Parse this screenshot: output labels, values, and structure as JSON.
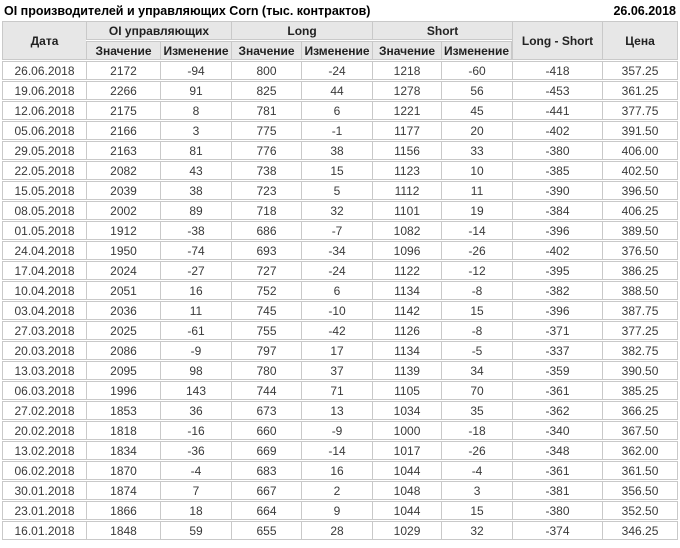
{
  "title_bar": {
    "title": "OI производителей и управляющих Corn (тыс. контрактов)",
    "report_date": "26.06.2018"
  },
  "table": {
    "header": {
      "date": "Дата",
      "oi_group": "OI управляющих",
      "long_group": "Long",
      "short_group": "Short",
      "long_short": "Long - Short",
      "price": "Цена",
      "value_label": "Значение",
      "change_label": "Изменение"
    },
    "rows": [
      {
        "date": "26.06.2018",
        "oi_value": 2172,
        "oi_change": -94,
        "long_value": 800,
        "long_change": -24,
        "short_value": 1218,
        "short_change": -60,
        "long_short": -418,
        "price": "357.25"
      },
      {
        "date": "19.06.2018",
        "oi_value": 2266,
        "oi_change": 91,
        "long_value": 825,
        "long_change": 44,
        "short_value": 1278,
        "short_change": 56,
        "long_short": -453,
        "price": "361.25"
      },
      {
        "date": "12.06.2018",
        "oi_value": 2175,
        "oi_change": 8,
        "long_value": 781,
        "long_change": 6,
        "short_value": 1221,
        "short_change": 45,
        "long_short": -441,
        "price": "377.75"
      },
      {
        "date": "05.06.2018",
        "oi_value": 2166,
        "oi_change": 3,
        "long_value": 775,
        "long_change": -1,
        "short_value": 1177,
        "short_change": 20,
        "long_short": -402,
        "price": "391.50"
      },
      {
        "date": "29.05.2018",
        "oi_value": 2163,
        "oi_change": 81,
        "long_value": 776,
        "long_change": 38,
        "short_value": 1156,
        "short_change": 33,
        "long_short": -380,
        "price": "406.00"
      },
      {
        "date": "22.05.2018",
        "oi_value": 2082,
        "oi_change": 43,
        "long_value": 738,
        "long_change": 15,
        "short_value": 1123,
        "short_change": 10,
        "long_short": -385,
        "price": "402.50"
      },
      {
        "date": "15.05.2018",
        "oi_value": 2039,
        "oi_change": 38,
        "long_value": 723,
        "long_change": 5,
        "short_value": 1112,
        "short_change": 11,
        "long_short": -390,
        "price": "396.50"
      },
      {
        "date": "08.05.2018",
        "oi_value": 2002,
        "oi_change": 89,
        "long_value": 718,
        "long_change": 32,
        "short_value": 1101,
        "short_change": 19,
        "long_short": -384,
        "price": "406.25"
      },
      {
        "date": "01.05.2018",
        "oi_value": 1912,
        "oi_change": -38,
        "long_value": 686,
        "long_change": -7,
        "short_value": 1082,
        "short_change": -14,
        "long_short": -396,
        "price": "389.50"
      },
      {
        "date": "24.04.2018",
        "oi_value": 1950,
        "oi_change": -74,
        "long_value": 693,
        "long_change": -34,
        "short_value": 1096,
        "short_change": -26,
        "long_short": -402,
        "price": "376.50"
      },
      {
        "date": "17.04.2018",
        "oi_value": 2024,
        "oi_change": -27,
        "long_value": 727,
        "long_change": -24,
        "short_value": 1122,
        "short_change": -12,
        "long_short": -395,
        "price": "386.25"
      },
      {
        "date": "10.04.2018",
        "oi_value": 2051,
        "oi_change": 16,
        "long_value": 752,
        "long_change": 6,
        "short_value": 1134,
        "short_change": -8,
        "long_short": -382,
        "price": "388.50"
      },
      {
        "date": "03.04.2018",
        "oi_value": 2036,
        "oi_change": 11,
        "long_value": 745,
        "long_change": -10,
        "short_value": 1142,
        "short_change": 15,
        "long_short": -396,
        "price": "387.75"
      },
      {
        "date": "27.03.2018",
        "oi_value": 2025,
        "oi_change": -61,
        "long_value": 755,
        "long_change": -42,
        "short_value": 1126,
        "short_change": -8,
        "long_short": -371,
        "price": "377.25"
      },
      {
        "date": "20.03.2018",
        "oi_value": 2086,
        "oi_change": -9,
        "long_value": 797,
        "long_change": 17,
        "short_value": 1134,
        "short_change": -5,
        "long_short": -337,
        "price": "382.75"
      },
      {
        "date": "13.03.2018",
        "oi_value": 2095,
        "oi_change": 98,
        "long_value": 780,
        "long_change": 37,
        "short_value": 1139,
        "short_change": 34,
        "long_short": -359,
        "price": "390.50"
      },
      {
        "date": "06.03.2018",
        "oi_value": 1996,
        "oi_change": 143,
        "long_value": 744,
        "long_change": 71,
        "short_value": 1105,
        "short_change": 70,
        "long_short": -361,
        "price": "385.25"
      },
      {
        "date": "27.02.2018",
        "oi_value": 1853,
        "oi_change": 36,
        "long_value": 673,
        "long_change": 13,
        "short_value": 1034,
        "short_change": 35,
        "long_short": -362,
        "price": "366.25"
      },
      {
        "date": "20.02.2018",
        "oi_value": 1818,
        "oi_change": -16,
        "long_value": 660,
        "long_change": -9,
        "short_value": 1000,
        "short_change": -18,
        "long_short": -340,
        "price": "367.50"
      },
      {
        "date": "13.02.2018",
        "oi_value": 1834,
        "oi_change": -36,
        "long_value": 669,
        "long_change": -14,
        "short_value": 1017,
        "short_change": -26,
        "long_short": -348,
        "price": "362.00"
      },
      {
        "date": "06.02.2018",
        "oi_value": 1870,
        "oi_change": -4,
        "long_value": 683,
        "long_change": 16,
        "short_value": 1044,
        "short_change": -4,
        "long_short": -361,
        "price": "361.50"
      },
      {
        "date": "30.01.2018",
        "oi_value": 1874,
        "oi_change": 7,
        "long_value": 667,
        "long_change": 2,
        "short_value": 1048,
        "short_change": 3,
        "long_short": -381,
        "price": "356.50"
      },
      {
        "date": "23.01.2018",
        "oi_value": 1866,
        "oi_change": 18,
        "long_value": 664,
        "long_change": 9,
        "short_value": 1044,
        "short_change": 15,
        "long_short": -380,
        "price": "352.50"
      },
      {
        "date": "16.01.2018",
        "oi_value": 1848,
        "oi_change": 59,
        "long_value": 655,
        "long_change": 28,
        "short_value": 1029,
        "short_change": 32,
        "long_short": -374,
        "price": "346.25"
      }
    ]
  },
  "colors": {
    "positive": "#1d9b1d",
    "negative": "#cc2222",
    "header_bg": "#e7e7e7",
    "border": "#c9c9c9",
    "text": "#3a3a3a"
  }
}
